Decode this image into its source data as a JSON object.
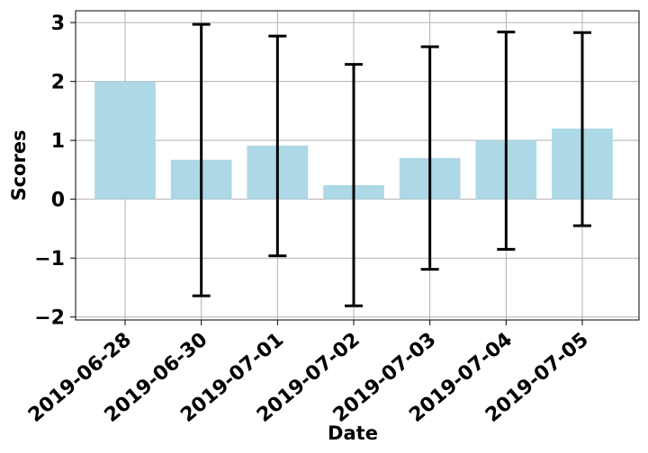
{
  "chart_data": {
    "type": "bar",
    "title": "",
    "xlabel": "Date",
    "ylabel": "Scores",
    "categories": [
      "2019-06-28",
      "2019-06-30",
      "2019-07-01",
      "2019-07-02",
      "2019-07-03",
      "2019-07-04",
      "2019-07-05"
    ],
    "values": [
      2.0,
      0.67,
      0.91,
      0.24,
      0.7,
      1.0,
      1.2
    ],
    "error_upper": [
      null,
      2.97,
      2.77,
      2.29,
      2.59,
      2.84,
      2.83
    ],
    "error_lower": [
      null,
      -1.64,
      -0.96,
      -1.81,
      -1.19,
      -0.85,
      -0.45
    ],
    "ylim": [
      -2.05,
      3.2
    ],
    "yticks": [
      -2,
      -1,
      0,
      1,
      2,
      3
    ],
    "ytick_labels": [
      "−2",
      "−1",
      "0",
      "1",
      "2",
      "3"
    ],
    "grid": true,
    "bar_color": "#add8e6",
    "error_color": "#000000"
  }
}
